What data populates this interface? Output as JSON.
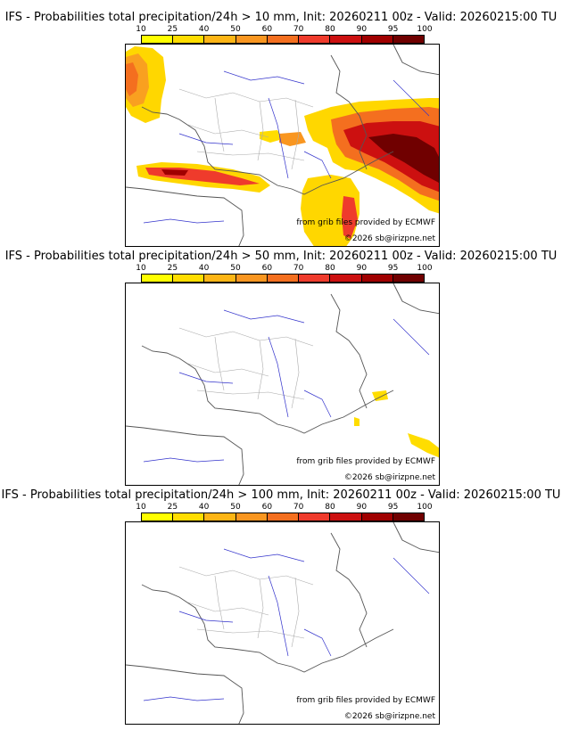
{
  "panels": [
    {
      "title": "IFS - Probabilities total precipitation/24h > 10 mm, Init: 20260211 00z - Valid: 20260215:00 TU"
    },
    {
      "title": "IFS - Probabilities total precipitation/24h > 50 mm, Init: 20260211 00z - Valid: 20260215:00 TU"
    },
    {
      "title": "IFS - Probabilities total precipitation/24h > 100 mm, Init: 20260211 00z - Valid: 20260215:00 TU"
    }
  ],
  "colorbar": {
    "ticks": [
      "10",
      "25",
      "40",
      "50",
      "60",
      "70",
      "80",
      "90",
      "95",
      "100"
    ],
    "colors": [
      "#ffff00",
      "#ffdd00",
      "#fdb515",
      "#f99620",
      "#f46f1f",
      "#ef3b2c",
      "#cc1010",
      "#a00000",
      "#700000"
    ]
  },
  "credits": {
    "source": "from grib files provided by ECMWF",
    "copyright": "©2026 sb@irizpne.net"
  },
  "map_colors": {
    "land_border": "#555555",
    "region_border": "#aaaaaa",
    "river": "#3333cc"
  }
}
